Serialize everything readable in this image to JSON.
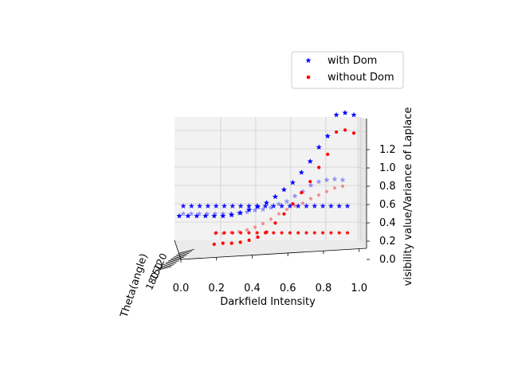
{
  "chart_data": {
    "type": "scatter",
    "projection": "3d",
    "xlabel": "Darkfield Intensity",
    "ylabel": "Theta(angle)",
    "zlabel": "visibility value/Variance of Laplace",
    "x_ticks": [
      "0.0",
      "0.2",
      "0.4",
      "0.6",
      "0.8",
      "1.0"
    ],
    "z_ticks": [
      "0.0",
      "0.2",
      "0.4",
      "0.6",
      "0.8",
      "1.0",
      "1.2"
    ],
    "y_ticks_note": "crowded, overlapping tick labels; partially legible",
    "y_ticks": [
      "180",
      "150",
      "120"
    ],
    "xlim": [
      0,
      1
    ],
    "zlim": [
      0,
      1.3
    ],
    "grid": true,
    "legend": {
      "placement": "top-right",
      "entries": [
        "with Dom",
        "without Dom"
      ]
    },
    "series": [
      {
        "name": "with Dom",
        "color": "#0000ff",
        "marker": "star",
        "layers": [
          {
            "depth": "front",
            "x": [
              0.0,
              0.05,
              0.1,
              0.15,
              0.2,
              0.25,
              0.3,
              0.35,
              0.4,
              0.45,
              0.5,
              0.55,
              0.6,
              0.65,
              0.7,
              0.75,
              0.8,
              0.85,
              0.9,
              0.95,
              1.0
            ],
            "z": [
              0.32,
              0.32,
              0.32,
              0.32,
              0.32,
              0.32,
              0.33,
              0.35,
              0.38,
              0.41,
              0.45,
              0.51,
              0.58,
              0.65,
              0.75,
              0.86,
              1.0,
              1.11,
              1.32,
              1.34,
              1.32
            ]
          },
          {
            "depth": "back",
            "x": [
              0.0,
              0.05,
              0.1,
              0.15,
              0.2,
              0.25,
              0.3,
              0.35,
              0.4,
              0.45,
              0.5,
              0.55,
              0.6,
              0.65,
              0.7,
              0.75,
              0.8,
              0.85,
              0.9,
              0.95,
              1.0
            ],
            "z": [
              0.38,
              0.38,
              0.38,
              0.38,
              0.38,
              0.38,
              0.38,
              0.38,
              0.38,
              0.38,
              0.38,
              0.38,
              0.38,
              0.38,
              0.38,
              0.38,
              0.38,
              0.38,
              0.38,
              0.38,
              0.38
            ]
          },
          {
            "depth": "back-faded",
            "x": [
              0.0,
              0.05,
              0.1,
              0.15,
              0.2,
              0.25,
              0.3,
              0.35,
              0.4,
              0.45,
              0.5,
              0.55,
              0.6,
              0.65,
              0.7,
              0.75,
              0.8,
              0.85,
              0.9,
              0.95,
              1.0
            ],
            "z": [
              0.36,
              0.36,
              0.36,
              0.36,
              0.36,
              0.36,
              0.36,
              0.37,
              0.38,
              0.4,
              0.41,
              0.43,
              0.47,
              0.5,
              0.56,
              0.61,
              0.68,
              0.72,
              0.74,
              0.75,
              0.74
            ]
          }
        ]
      },
      {
        "name": "without Dom",
        "color": "#ff0000",
        "marker": "circle",
        "layers": [
          {
            "depth": "front",
            "x": [
              0.2,
              0.25,
              0.3,
              0.35,
              0.4,
              0.45,
              0.5,
              0.55,
              0.6,
              0.65,
              0.7,
              0.75,
              0.8,
              0.85,
              0.9,
              0.95,
              1.0
            ],
            "z": [
              0.04,
              0.05,
              0.05,
              0.06,
              0.08,
              0.11,
              0.16,
              0.25,
              0.34,
              0.44,
              0.55,
              0.66,
              0.8,
              0.93,
              1.15,
              1.17,
              1.14
            ]
          },
          {
            "depth": "back",
            "x": [
              0.2,
              0.25,
              0.3,
              0.35,
              0.4,
              0.45,
              0.5,
              0.55,
              0.6,
              0.65,
              0.7,
              0.75,
              0.8,
              0.85,
              0.9,
              0.95,
              1.0
            ],
            "z": [
              0.09,
              0.09,
              0.09,
              0.09,
              0.09,
              0.09,
              0.09,
              0.09,
              0.09,
              0.09,
              0.09,
              0.09,
              0.09,
              0.09,
              0.09,
              0.09,
              0.09
            ]
          },
          {
            "depth": "back-faded",
            "x": [
              0.2,
              0.25,
              0.3,
              0.35,
              0.4,
              0.45,
              0.5,
              0.55,
              0.6,
              0.65,
              0.7,
              0.75,
              0.8,
              0.85,
              0.9,
              0.95,
              1.0
            ],
            "z": [
              0.14,
              0.14,
              0.15,
              0.16,
              0.18,
              0.21,
              0.25,
              0.3,
              0.36,
              0.41,
              0.45,
              0.48,
              0.53,
              0.57,
              0.61,
              0.65,
              0.67
            ]
          }
        ]
      }
    ]
  }
}
